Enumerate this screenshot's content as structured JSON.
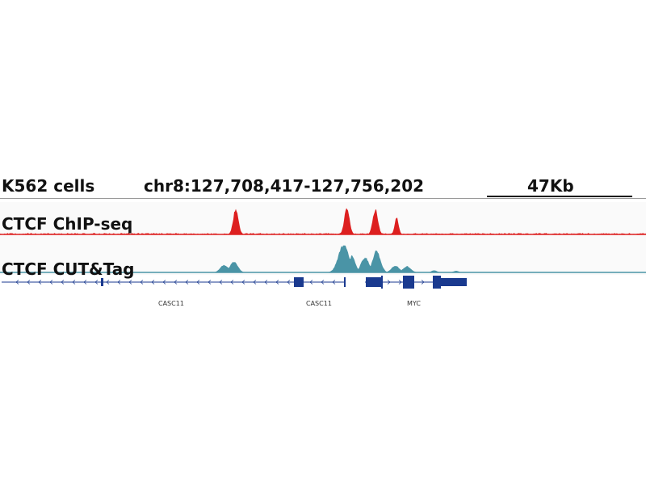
{
  "header": {
    "cell_line": "K562 cells",
    "locus": "chr8:127,708,417-127,756,202",
    "scale": "47Kb"
  },
  "tracks": [
    {
      "label": "CTCF ChIP-seq",
      "color": "#dd2020",
      "peaks": [
        {
          "center": 0.365,
          "height": 0.94,
          "width": 0.004
        },
        {
          "center": 0.537,
          "height": 0.98,
          "width": 0.004
        },
        {
          "center": 0.581,
          "height": 0.92,
          "width": 0.004
        },
        {
          "center": 0.614,
          "height": 0.62,
          "width": 0.003
        }
      ]
    },
    {
      "label": "CTCF CUT&Tag",
      "color": "#4a94a6",
      "peaks": [
        {
          "center": 0.347,
          "height": 0.25,
          "width": 0.006
        },
        {
          "center": 0.362,
          "height": 0.35,
          "width": 0.006
        },
        {
          "center": 0.532,
          "height": 0.92,
          "width": 0.008
        },
        {
          "center": 0.526,
          "height": 0.55,
          "width": 0.005
        },
        {
          "center": 0.545,
          "height": 0.55,
          "width": 0.005
        },
        {
          "center": 0.565,
          "height": 0.5,
          "width": 0.006
        },
        {
          "center": 0.583,
          "height": 0.72,
          "width": 0.006
        },
        {
          "center": 0.612,
          "height": 0.22,
          "width": 0.006
        },
        {
          "center": 0.63,
          "height": 0.2,
          "width": 0.006
        },
        {
          "center": 0.672,
          "height": 0.07,
          "width": 0.004
        },
        {
          "center": 0.706,
          "height": 0.05,
          "width": 0.004
        }
      ]
    }
  ],
  "genes": [
    {
      "label": "CASC11"
    },
    {
      "label": "CASC11"
    },
    {
      "label": "MYC"
    }
  ],
  "colors": {
    "gene": "#1a3a8f"
  }
}
